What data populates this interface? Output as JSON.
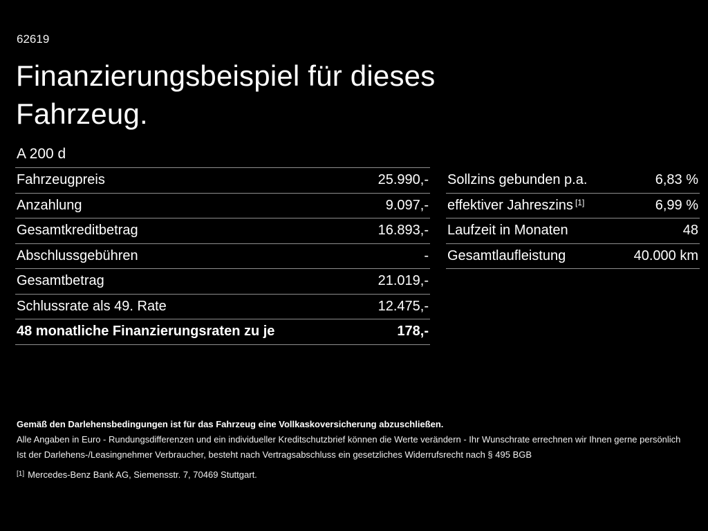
{
  "page": {
    "background_color": "#000000",
    "text_color": "#ffffff",
    "divider_color": "#8f8f8f",
    "doc_number": "62619",
    "title_line1": "Finanzierungsbeispiel für dieses",
    "title_line2": "Fahrzeug.",
    "model": "A 200 d"
  },
  "finance_table": {
    "rows": [
      {
        "label": "Fahrzeugpreis",
        "value": "25.990,-"
      },
      {
        "label": "Anzahlung",
        "value": "9.097,-"
      },
      {
        "label": "Gesamtkreditbetrag",
        "value": "16.893,-"
      },
      {
        "label": "Abschlussgebühren",
        "value": "-"
      },
      {
        "label": "Gesamtbetrag",
        "value": "21.019,-"
      },
      {
        "label": "Schlussrate als 49. Rate",
        "value": "12.475,-"
      },
      {
        "label": "48 monatliche Finanzierungsraten zu je",
        "value": "178,-"
      }
    ]
  },
  "conditions_table": {
    "rows": [
      {
        "label": "Sollzins gebunden p.a.",
        "value": "6,83 %"
      },
      {
        "label": "effektiver Jahreszins",
        "sup": "[1]",
        "value": "6,99 %"
      },
      {
        "label": "Laufzeit in Monaten",
        "value": "48"
      },
      {
        "label": "Gesamtlaufleistung",
        "value": "40.000 km"
      }
    ]
  },
  "footnotes": {
    "insurance_note": "Gemäß den Darlehensbedingungen ist für das Fahrzeug eine Vollkaskoversicherung abzuschließen.",
    "disclaimer_line1": "Alle Angaben in Euro - Rundungsdifferenzen und ein individueller Kreditschutzbrief können die Werte verändern - Ihr Wunschrate errechnen wir Ihnen gerne persönlich",
    "disclaimer_line2": "Ist der Darlehens-/Leasingnehmer Verbraucher, besteht nach Vertragsabschluss ein gesetzliches Widerrufsrecht nach § 495 BGB",
    "bank_ref_marker": "[1]",
    "bank_ref_text": "Mercedes-Benz Bank AG, Siemensstr. 7, 70469 Stuttgart."
  }
}
